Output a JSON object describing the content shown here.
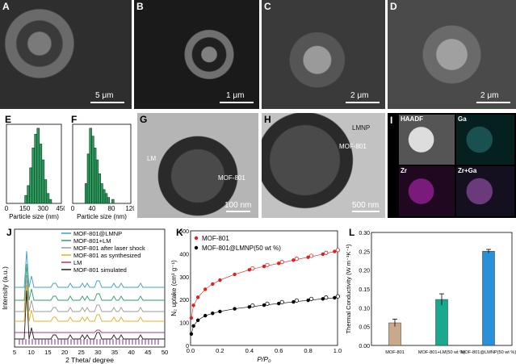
{
  "panels": {
    "A": {
      "label": "A",
      "scale": "5 μm"
    },
    "B": {
      "label": "B",
      "scale": "1 μm"
    },
    "C": {
      "label": "C",
      "scale": "2 μm"
    },
    "D": {
      "label": "D",
      "scale": "2 μm"
    },
    "E": {
      "label": "E",
      "xlabel": "Particle size (nm)",
      "xticks": [
        "0",
        "150",
        "300",
        "450"
      ]
    },
    "F": {
      "label": "F",
      "xlabel": "Particle size (nm)",
      "xticks": [
        "0",
        "40",
        "80",
        "120"
      ]
    },
    "G": {
      "label": "G",
      "scale": "100 nm",
      "annotations": [
        "LM",
        "MOF-801"
      ]
    },
    "H": {
      "label": "H",
      "scale": "500 nm",
      "annotations": [
        "LMNP",
        "MOF-801"
      ]
    },
    "I": {
      "label": "I",
      "tiles": [
        "HAADF",
        "Ga",
        "Zr",
        "Zr+Ga"
      ]
    },
    "J": {
      "label": "J",
      "xlabel": "2 Theta/ degree",
      "ylabel": "Intensity (a.u.)",
      "xticks": [
        "5",
        "10",
        "15",
        "20",
        "25",
        "30",
        "35",
        "40",
        "45",
        "50"
      ],
      "legend": [
        "MOF-801@LMNP",
        "MOF-801+LM",
        "MOF-801 after laser shock",
        "MOF-801 as synthesized",
        "LM",
        "MOF-801 simulated"
      ],
      "colors": [
        "#3aa0c8",
        "#2e9e6b",
        "#9a9a9a",
        "#e8b020",
        "#c0306a",
        "#222222"
      ]
    },
    "K": {
      "label": "K",
      "xlabel": "P/P₀",
      "ylabel": "N₂ uptake (cm³ g⁻¹)",
      "xticks": [
        "0.0",
        "0.2",
        "0.4",
        "0.6",
        "0.8",
        "1.0"
      ],
      "yticks": [
        "0",
        "100",
        "200",
        "300",
        "400",
        "500"
      ],
      "legend": [
        "MOF-801",
        "MOF-801@LMNP(50 wt %)"
      ]
    },
    "L": {
      "label": "L",
      "ylabel": "Thermal Conductivity (W m⁻¹K⁻¹)",
      "yticks": [
        "0.00",
        "0.05",
        "0.10",
        "0.15",
        "0.20",
        "0.25",
        "0.30"
      ]
    }
  },
  "chart_data": [
    {
      "type": "bar",
      "panel": "E",
      "xlabel": "Particle size (nm)",
      "xlim": [
        0,
        450
      ],
      "categories": [
        160,
        180,
        200,
        220,
        240,
        260,
        280,
        300,
        320,
        340,
        360
      ],
      "values": [
        4,
        9,
        18,
        28,
        35,
        38,
        30,
        22,
        12,
        5,
        2
      ]
    },
    {
      "type": "bar",
      "panel": "F",
      "xlabel": "Particle size (nm)",
      "xlim": [
        0,
        130
      ],
      "categories": [
        30,
        35,
        40,
        45,
        50,
        55,
        60,
        65,
        70,
        75,
        80,
        90
      ],
      "values": [
        10,
        25,
        38,
        34,
        28,
        22,
        15,
        10,
        7,
        5,
        3,
        2
      ]
    },
    {
      "type": "line",
      "panel": "K",
      "xlabel": "P/P₀",
      "ylabel": "N₂ uptake (cm³ g⁻¹)",
      "xlim": [
        0,
        1
      ],
      "ylim": [
        0,
        500
      ],
      "series": [
        {
          "name": "MOF-801",
          "color": "#e02020",
          "x": [
            0.005,
            0.02,
            0.05,
            0.1,
            0.15,
            0.2,
            0.3,
            0.4,
            0.5,
            0.6,
            0.7,
            0.8,
            0.9,
            0.98
          ],
          "y": [
            120,
            175,
            210,
            245,
            268,
            285,
            310,
            330,
            345,
            358,
            372,
            385,
            398,
            410
          ]
        },
        {
          "name": "MOF-801@LMNP(50 wt %)",
          "color": "#000000",
          "x": [
            0.005,
            0.02,
            0.05,
            0.1,
            0.15,
            0.2,
            0.3,
            0.4,
            0.5,
            0.6,
            0.7,
            0.8,
            0.9,
            0.98
          ],
          "y": [
            50,
            85,
            110,
            130,
            140,
            148,
            160,
            168,
            176,
            183,
            190,
            197,
            203,
            208
          ]
        }
      ]
    },
    {
      "type": "bar",
      "panel": "L",
      "ylabel": "Thermal Conductivity (W m⁻¹K⁻¹)",
      "ylim": [
        0,
        0.3
      ],
      "categories": [
        "MOF-801",
        "MOF-801+LM(50 wt %)",
        "MOF-801@LMNP(50 wt %)"
      ],
      "values": [
        0.06,
        0.122,
        0.25
      ],
      "errors": [
        0.01,
        0.015,
        0.005
      ],
      "colors": [
        "#c8a98a",
        "#1aa88e",
        "#2a90d8"
      ]
    }
  ]
}
